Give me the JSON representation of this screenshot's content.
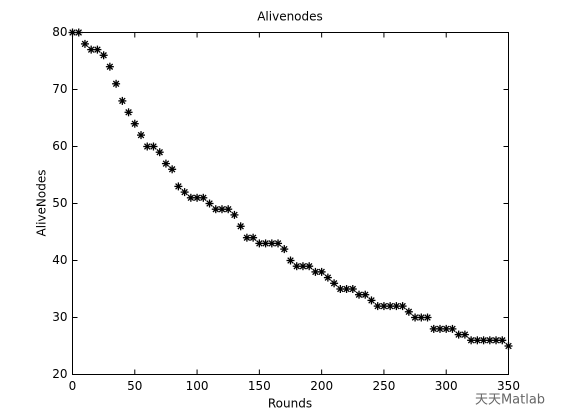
{
  "chart_data": {
    "type": "scatter",
    "title": "Alivenodes",
    "x_label": "Rounds",
    "y_label": "AliveNodes",
    "marker": "*",
    "color": "#000000",
    "x": [
      0,
      5,
      10,
      15,
      20,
      25,
      30,
      35,
      40,
      45,
      50,
      55,
      60,
      65,
      70,
      75,
      80,
      85,
      90,
      95,
      100,
      105,
      110,
      115,
      120,
      125,
      130,
      135,
      140,
      145,
      150,
      155,
      160,
      165,
      170,
      175,
      180,
      185,
      190,
      195,
      200,
      205,
      210,
      215,
      220,
      225,
      230,
      235,
      240,
      245,
      250,
      255,
      260,
      265,
      270,
      275,
      280,
      285,
      290,
      295,
      300,
      305,
      310,
      315,
      320,
      325,
      330,
      335,
      340,
      345,
      350
    ],
    "values": [
      80,
      80,
      78,
      77,
      77,
      76,
      74,
      71,
      68,
      66,
      64,
      62,
      60,
      60,
      59,
      57,
      56,
      53,
      52,
      51,
      51,
      51,
      50,
      49,
      49,
      49,
      48,
      46,
      44,
      44,
      43,
      43,
      43,
      43,
      42,
      40,
      39,
      39,
      39,
      38,
      38,
      37,
      36,
      35,
      35,
      35,
      34,
      34,
      33,
      32,
      32,
      32,
      32,
      32,
      31,
      30,
      30,
      30,
      28,
      28,
      28,
      28,
      27,
      27,
      26,
      26,
      26,
      26,
      26,
      26,
      25
    ],
    "xlim": [
      0,
      350
    ],
    "xticks": [
      0,
      50,
      100,
      150,
      200,
      250,
      300,
      350
    ],
    "ylim": [
      20,
      80
    ],
    "yticks": [
      20,
      30,
      40,
      50,
      60,
      70,
      80
    ],
    "watermark": "天天Matlab"
  }
}
